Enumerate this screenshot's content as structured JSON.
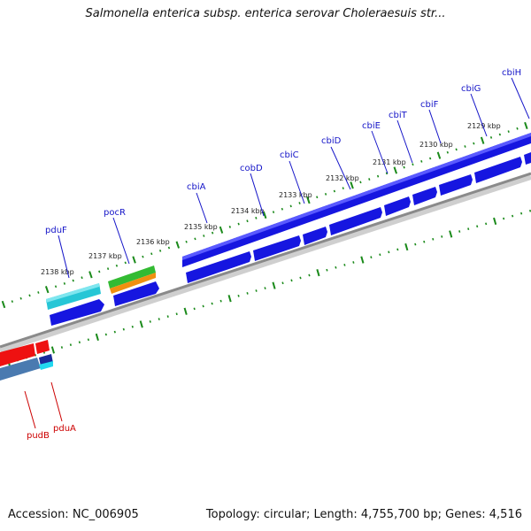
{
  "title": "Salmonella enterica subsp. enterica serovar Choleraesuis str...",
  "footer": {
    "accession": "Accession: NC_006905",
    "topology": "Topology: circular; Length: 4,755,700 bp; Genes: 4,516"
  },
  "colors": {
    "backbone": "#8a8a8a",
    "tick": "#1a8a1a",
    "label_blue": "#1515c8",
    "label_red": "#cc0000",
    "gene_blue": "#1616e0",
    "gene_cyan": "#26c6d6",
    "gene_red": "#ee1111",
    "gene_steel": "#4a7ab0",
    "gene_green": "#33bb33",
    "gene_orange": "#f09010"
  },
  "kbp_labels": [
    "2138 kbp",
    "2137 kbp",
    "2136 kbp",
    "2135 kbp",
    "2134 kbp",
    "2133 kbp",
    "2132 kbp",
    "2131 kbp",
    "2130 kbp",
    "2129 kbp"
  ],
  "gene_labels_top": [
    "pduF",
    "pocR",
    "cbiA",
    "cobD",
    "cbiC",
    "cbiD",
    "cbiE",
    "cbiT",
    "cbiF",
    "cbiG",
    "cbiH"
  ],
  "gene_labels_bottom": [
    "pudB",
    "pduA"
  ]
}
